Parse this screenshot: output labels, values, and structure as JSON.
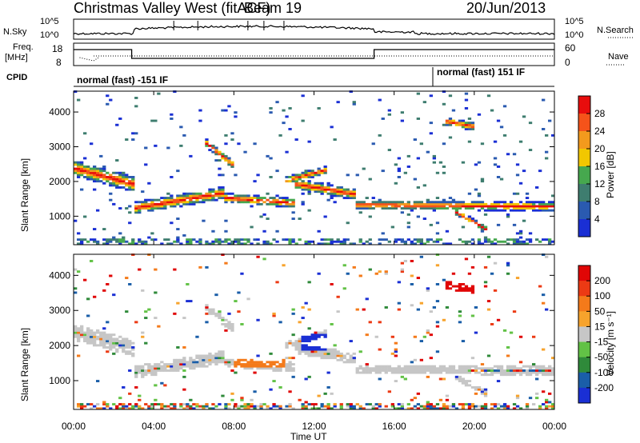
{
  "header": {
    "title": "Christmas Valley West (fitACF)",
    "beam": "Beam 19",
    "date": "20/Jun/2013"
  },
  "panels": {
    "nsky_label": "N.Sky",
    "nsearch_label": "N.Search",
    "nsky_ticks": [
      "10^5",
      "10^0"
    ],
    "nsearch_ticks": [
      "10^5",
      "10^0"
    ],
    "freq_label": [
      "Freq.",
      "[MHz]"
    ],
    "freq_ticks": [
      "18",
      "8"
    ],
    "nave_label": "Nave",
    "nave_ticks": [
      "60",
      "0"
    ],
    "cpid_label": "CPID",
    "cpid_segments": [
      "normal (fast) -151 IF",
      "normal (fast) 151 IF"
    ]
  },
  "chart_data": [
    {
      "type": "heatmap",
      "name": "power",
      "ylabel": "Slant Range [km]",
      "ylim": [
        180,
        4600
      ],
      "yticks": [
        "1000",
        "2000",
        "3000",
        "4000"
      ],
      "colorbar_label": "Power [dB]",
      "colorbar_ticks": [
        "4",
        "8",
        "12",
        "16",
        "20",
        "24",
        "28"
      ],
      "colorbar_colors": [
        "#1a2fd4",
        "#2a5ab0",
        "#3e7d6f",
        "#46a84e",
        "#f2c700",
        "#f39a1d",
        "#f5531a",
        "#e80d0d"
      ],
      "grid": false
    },
    {
      "type": "heatmap",
      "name": "velocity",
      "ylabel": "Slant Range [km]",
      "ylim": [
        180,
        4600
      ],
      "yticks": [
        "1000",
        "2000",
        "3000",
        "4000"
      ],
      "colorbar_label": "Velocity [m s⁻¹]",
      "colorbar_ticks": [
        "200",
        "100",
        "50",
        "15",
        "-15",
        "-50",
        "-100",
        "-200"
      ],
      "colorbar_colors": [
        "#1a2fd4",
        "#1a5ea8",
        "#2f8a3a",
        "#62c246",
        "#c6c6c6",
        "#f7a32c",
        "#f47a1a",
        "#ec3a14",
        "#e00606"
      ],
      "grid": false
    }
  ],
  "xaxis": {
    "label": "Time UT",
    "ticks": [
      "00:00",
      "04:00",
      "08:00",
      "12:00",
      "16:00",
      "20:00",
      "00:00"
    ],
    "range_hours": [
      0,
      24
    ]
  }
}
